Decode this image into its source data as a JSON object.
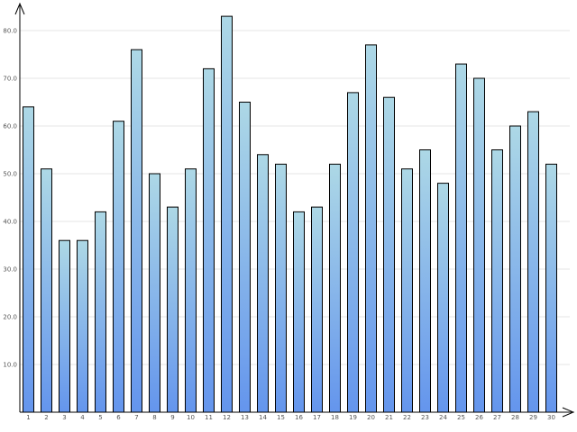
{
  "chart_data": {
    "type": "bar",
    "categories": [
      "1",
      "2",
      "3",
      "4",
      "5",
      "6",
      "7",
      "8",
      "9",
      "10",
      "11",
      "12",
      "13",
      "14",
      "15",
      "16",
      "17",
      "18",
      "19",
      "20",
      "21",
      "22",
      "23",
      "24",
      "25",
      "26",
      "27",
      "28",
      "29",
      "30"
    ],
    "values": [
      64,
      51,
      36,
      36,
      42,
      61,
      76,
      50,
      43,
      51,
      72,
      83,
      65,
      54,
      52,
      42,
      43,
      52,
      67,
      77,
      66,
      51,
      55,
      48,
      73,
      70,
      55,
      60,
      63,
      52
    ],
    "y_ticks": [
      "10.0",
      "20.0",
      "30.0",
      "40.0",
      "50.0",
      "60.0",
      "70.0",
      "80.0"
    ],
    "ylim": [
      0,
      85
    ],
    "grid": true,
    "bar_gradient": {
      "top": "#add8e6",
      "bottom": "#6495ed"
    },
    "bar_stroke": "#000000",
    "axis_color": "#000000",
    "grid_color": "#e6e6e6"
  }
}
